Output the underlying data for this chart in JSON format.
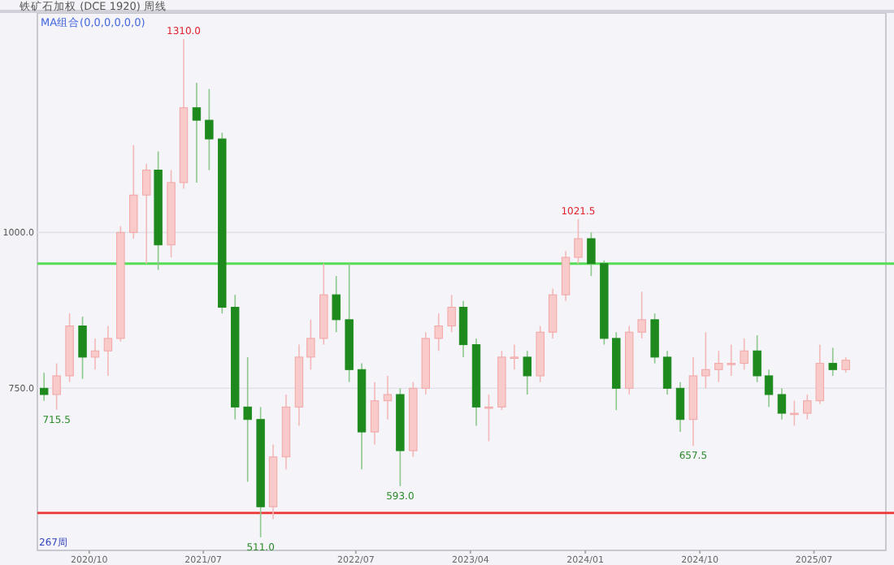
{
  "chart_data": {
    "type": "candlestick",
    "title": "铁矿石加权 (DCE 1920) 周线",
    "subtitle": "MA组合(0,0,0,0,0,0)",
    "x": [
      "2020-06-15",
      "2020-07-15",
      "2020-08-15",
      "2020-09-15",
      "2020-10-15",
      "2020-11-15",
      "2020-12-15",
      "2021-01-15",
      "2021-02-15",
      "2021-03-15",
      "2021-04-15",
      "2021-05-15",
      "2021-06-15",
      "2021-07-15",
      "2021-08-15",
      "2021-09-15",
      "2021-10-15",
      "2021-11-15",
      "2021-12-15",
      "2022-01-15",
      "2022-02-15",
      "2022-03-15",
      "2022-04-15",
      "2022-05-15",
      "2022-06-15",
      "2022-07-15",
      "2022-08-15",
      "2022-09-15",
      "2022-10-15",
      "2022-11-15",
      "2022-12-15",
      "2023-01-15",
      "2023-02-15",
      "2023-03-15",
      "2023-04-15",
      "2023-05-15",
      "2023-06-15",
      "2023-07-15",
      "2023-08-15",
      "2023-09-15",
      "2023-10-15",
      "2023-11-15",
      "2023-12-15",
      "2024-01-15",
      "2024-02-15",
      "2024-03-15",
      "2024-04-15",
      "2024-05-15",
      "2024-06-15",
      "2024-07-15",
      "2024-08-15",
      "2024-09-15",
      "2024-10-15",
      "2024-11-15",
      "2024-12-15",
      "2025-01-15",
      "2025-02-15",
      "2025-03-15",
      "2025-04-15",
      "2025-05-15",
      "2025-06-15",
      "2025-07-15",
      "2025-08-15",
      "2025-09-15"
    ],
    "ohlc": [
      [
        750,
        775,
        730,
        740
      ],
      [
        740,
        790,
        715.5,
        770
      ],
      [
        770,
        870,
        760,
        850
      ],
      [
        850,
        865,
        765,
        800
      ],
      [
        800,
        830,
        780,
        810
      ],
      [
        810,
        850,
        770,
        830
      ],
      [
        830,
        1010,
        825,
        1000
      ],
      [
        1000,
        1140,
        990,
        1060
      ],
      [
        1060,
        1110,
        950,
        1100
      ],
      [
        1100,
        1130,
        940,
        980
      ],
      [
        980,
        1100,
        960,
        1080
      ],
      [
        1080,
        1310,
        1070,
        1200
      ],
      [
        1200,
        1240,
        1080,
        1180
      ],
      [
        1180,
        1230,
        1100,
        1150
      ],
      [
        1150,
        1160,
        870,
        880
      ],
      [
        880,
        900,
        700,
        720
      ],
      [
        720,
        800,
        600,
        700
      ],
      [
        700,
        720,
        511,
        560
      ],
      [
        560,
        660,
        540,
        640
      ],
      [
        640,
        740,
        620,
        720
      ],
      [
        720,
        820,
        690,
        800
      ],
      [
        800,
        860,
        780,
        830
      ],
      [
        830,
        950,
        820,
        900
      ],
      [
        900,
        930,
        840,
        860
      ],
      [
        860,
        950,
        760,
        780
      ],
      [
        780,
        790,
        620,
        680
      ],
      [
        680,
        760,
        660,
        730
      ],
      [
        730,
        770,
        700,
        740
      ],
      [
        740,
        750,
        593,
        650
      ],
      [
        650,
        760,
        640,
        750
      ],
      [
        750,
        840,
        740,
        830
      ],
      [
        830,
        870,
        810,
        850
      ],
      [
        850,
        900,
        840,
        880
      ],
      [
        880,
        890,
        800,
        820
      ],
      [
        820,
        830,
        690,
        720
      ],
      [
        720,
        740,
        665,
        720
      ],
      [
        720,
        810,
        715,
        800
      ],
      [
        800,
        820,
        780,
        800
      ],
      [
        800,
        810,
        740,
        770
      ],
      [
        770,
        850,
        760,
        840
      ],
      [
        840,
        910,
        830,
        900
      ],
      [
        900,
        970,
        890,
        960
      ],
      [
        960,
        1021.5,
        950,
        990
      ],
      [
        990,
        1000,
        930,
        950
      ],
      [
        950,
        955,
        820,
        830
      ],
      [
        830,
        840,
        715,
        750
      ],
      [
        750,
        850,
        740,
        840
      ],
      [
        840,
        905,
        830,
        860
      ],
      [
        860,
        870,
        790,
        800
      ],
      [
        800,
        810,
        740,
        750
      ],
      [
        750,
        760,
        680,
        700
      ],
      [
        700,
        800,
        657.5,
        770
      ],
      [
        770,
        840,
        750,
        780
      ],
      [
        780,
        810,
        760,
        790
      ],
      [
        790,
        820,
        770,
        790
      ],
      [
        790,
        830,
        780,
        810
      ],
      [
        810,
        835,
        760,
        770
      ],
      [
        770,
        780,
        720,
        740
      ],
      [
        740,
        750,
        700,
        710
      ],
      [
        710,
        730,
        690,
        710
      ],
      [
        710,
        740,
        700,
        730
      ],
      [
        730,
        820,
        725,
        790
      ],
      [
        790,
        815,
        770,
        780
      ],
      [
        780,
        800,
        775,
        795
      ]
    ],
    "xlim": [
      "2020-05-30",
      "2025-12-20"
    ],
    "xticks": [
      {
        "value": "2020-10-01",
        "label": "2020/10"
      },
      {
        "value": "2021-07-01",
        "label": "2021/07"
      },
      {
        "value": "2022-07-01",
        "label": "2022/07"
      },
      {
        "value": "2023-04-01",
        "label": "2023/04"
      },
      {
        "value": "2024-01-01",
        "label": "2024/01"
      },
      {
        "value": "2024-10-01",
        "label": "2024/10"
      },
      {
        "value": "2025-07-01",
        "label": "2025/07"
      }
    ],
    "ylim": [
      490,
      1352
    ],
    "yticks": [
      {
        "value": 750,
        "label": "750.0"
      },
      {
        "value": 1000,
        "label": "1000.0"
      }
    ],
    "grid": "y",
    "ref_lines": [
      {
        "axis": "y",
        "value": 950,
        "color": "#55dd55"
      },
      {
        "axis": "y",
        "value": 550,
        "color": "#ee3333"
      }
    ],
    "annotations": [
      {
        "text": "1310.0",
        "x": "2021-05-15",
        "y": 1310
      },
      {
        "text": "715.5",
        "x": "2020-07-15",
        "y": 715.5
      },
      {
        "text": "511.0",
        "x": "2021-11-15",
        "y": 511
      },
      {
        "text": "593.0",
        "x": "2022-10-15",
        "y": 593
      },
      {
        "text": "1021.5",
        "x": "2023-12-15",
        "y": 1021.5
      },
      {
        "text": "657.5",
        "x": "2024-09-15",
        "y": 657.5
      },
      "267周"
    ]
  }
}
